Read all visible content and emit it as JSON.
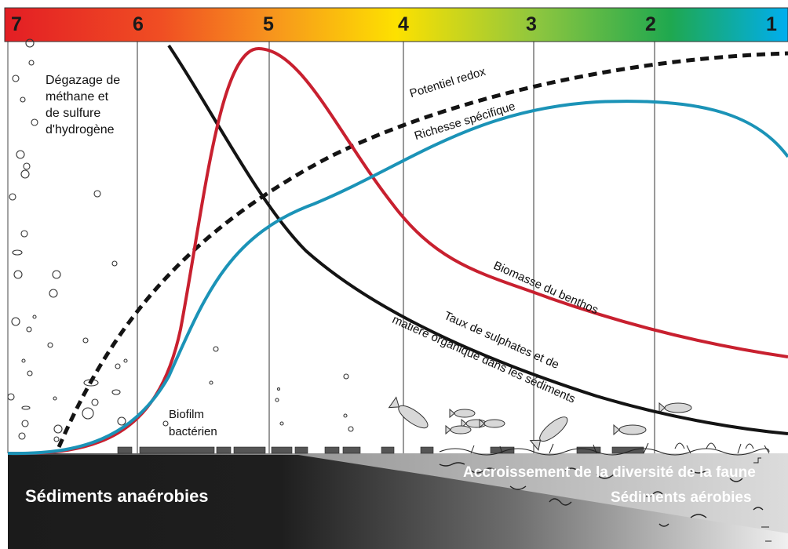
{
  "scale": {
    "numbers": [
      "7",
      "6",
      "5",
      "4",
      "3",
      "2",
      "1"
    ],
    "gradient_colors": [
      "#e31e24",
      "#f47b20",
      "#fde100",
      "#8dc63f",
      "#1fa84f",
      "#00aeef"
    ]
  },
  "labels": {
    "gas": [
      "Dégazage de",
      "méthane et",
      "de sulfure",
      "d'hydrogène"
    ],
    "biofilm": [
      "Biofilm",
      "bactérien"
    ],
    "redox": "Potentiel redox",
    "richness": "Richesse spécifique",
    "biomass": "Biomasse du benthos",
    "sulphate_line1": "Taux de sulphates et de",
    "sulphate_line2": "matière organique dans les sédiments",
    "anaerobic": "Sédiments anaérobies",
    "fauna": "Accroissement de la diversité de la faune",
    "aerobic": "Sédiments aérobies"
  },
  "curves": {
    "biomass_color": "#c8202f",
    "richness_color": "#1b93b7",
    "sulphate_color": "#141414",
    "redox_color": "#141414"
  }
}
